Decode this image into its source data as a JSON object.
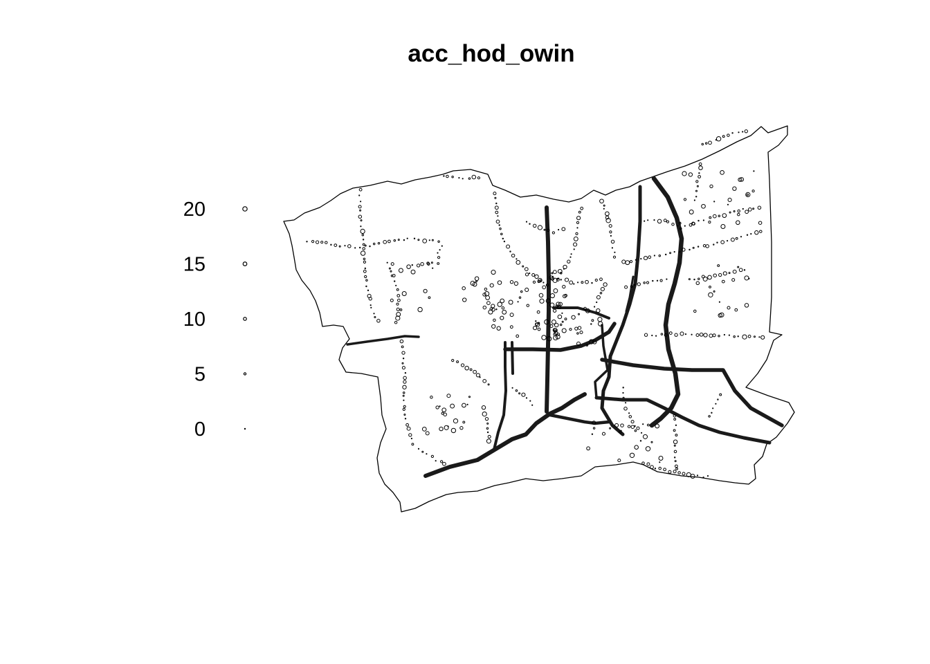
{
  "title": "acc_hod_owin",
  "legend": {
    "entries": [
      {
        "label": "20",
        "value": 20
      },
      {
        "label": "15",
        "value": 15
      },
      {
        "label": "10",
        "value": 10
      },
      {
        "label": "5",
        "value": 5
      },
      {
        "label": "0",
        "value": 0
      }
    ]
  },
  "colors": {
    "ink": "#000000",
    "road": "#1a1a1a",
    "background": "#ffffff"
  }
}
